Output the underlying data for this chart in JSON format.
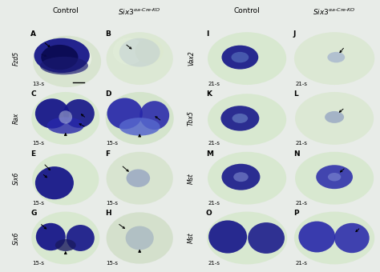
{
  "background_color": "#e8ece8",
  "panel_bg_colors": {
    "left_control": "#c8d4c0",
    "left_ko": "#d0d8cc",
    "right_control": "#c8d4c0",
    "right_ko": "#d0d8cc"
  },
  "col_headers_left": [
    "Control",
    "Six3^{\\\\Phi a-Cre-KO}"
  ],
  "col_headers_right": [
    "Control",
    "Six3^{\\\\Phi a-Cre-KO}"
  ],
  "gene_labels_left": [
    "Fzd5",
    "Rax",
    "Six6",
    "Six6"
  ],
  "gene_labels_right": [
    "Vax2",
    "Tbx5",
    "Mst",
    "Mst"
  ],
  "panel_labels_left": [
    [
      "A",
      "B"
    ],
    [
      "C",
      "D"
    ],
    [
      "E",
      "F"
    ],
    [
      "G",
      "H"
    ]
  ],
  "panel_labels_right": [
    [
      "I",
      "J"
    ],
    [
      "K",
      "L"
    ],
    [
      "M",
      "N"
    ],
    [
      "O",
      "P"
    ]
  ],
  "stage_left": [
    [
      "13-s",
      ""
    ],
    [
      "15-s",
      ""
    ],
    [
      "15-s",
      ""
    ],
    [
      "15-s",
      ""
    ]
  ],
  "stage_right": [
    [
      "21-s",
      ""
    ],
    [
      "21-s",
      ""
    ],
    [
      "21-s",
      ""
    ],
    [
      "21-s",
      ""
    ]
  ],
  "blue_dark": "#18188a",
  "blue_mid": "#2828aa",
  "blue_light": "#5566cc",
  "blue_faint": "#8899cc",
  "tissue_light": "#e8f0e4",
  "tissue_mid": "#d0dcc8",
  "tissue_dark": "#b8ccb0",
  "col_header_fontsize": 6.5,
  "gene_label_fontsize": 5.5,
  "panel_label_fontsize": 6.5,
  "stage_fontsize": 5
}
